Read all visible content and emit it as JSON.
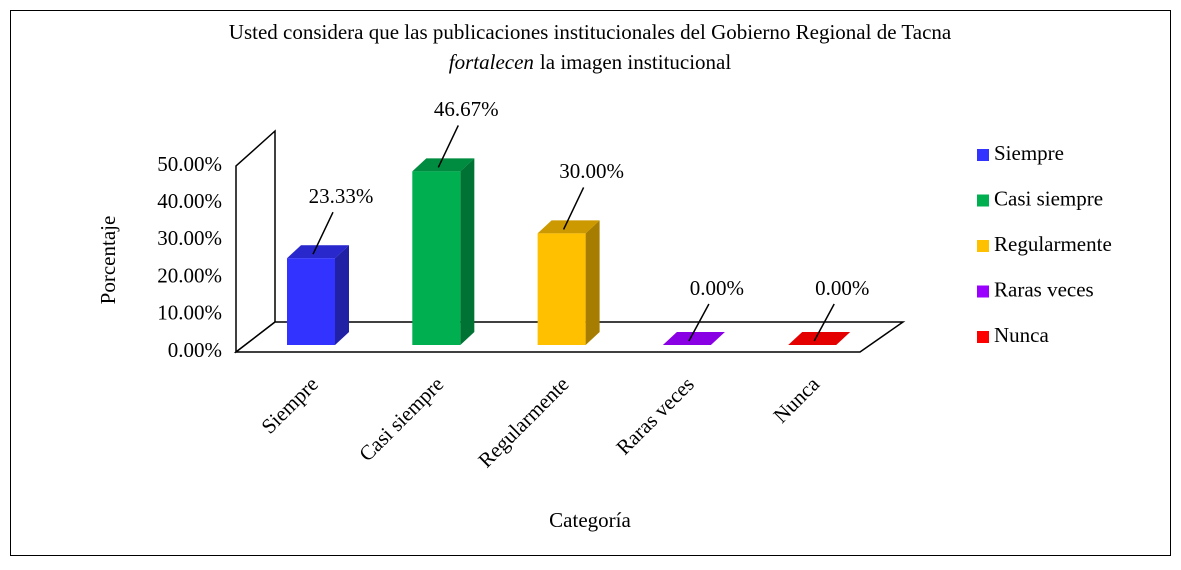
{
  "chart_data": {
    "type": "bar3d",
    "title": [
      "Usted considera que las publicaciones institucionales del Gobierno Regional de Tacna",
      "fortalecen",
      "la imagen institucional"
    ],
    "x_label": "Categoría",
    "y_label": "Porcentaje",
    "categories": [
      "Siempre",
      "Casi siempre",
      "Regularmente",
      "Raras veces",
      "Nunca"
    ],
    "values": [
      23.33,
      46.67,
      30,
      0,
      0
    ],
    "value_labels": [
      "23.33%",
      "46.67%",
      "30.00%",
      "0.00%",
      "0.00%"
    ],
    "colors": [
      "#3333ff",
      "#00b050",
      "#ffc000",
      "#9900ff",
      "#ff0000"
    ],
    "ylim": [
      0,
      50
    ],
    "yticks": [
      {
        "value": 0,
        "label": "0.00%"
      },
      {
        "value": 10,
        "label": "10.00%"
      },
      {
        "value": 20,
        "label": "20.00%"
      },
      {
        "value": 30,
        "label": "30.00%"
      },
      {
        "value": 40,
        "label": "40.00%"
      },
      {
        "value": 50,
        "label": "50.00%"
      }
    ],
    "legend": "right"
  }
}
